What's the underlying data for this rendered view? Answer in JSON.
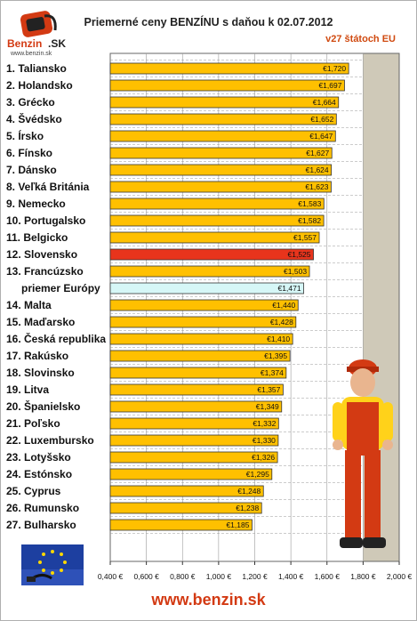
{
  "header": {
    "title": "Priemerné ceny BENZÍNU s daňou k 02.07.2012",
    "subtitle": "v27 štátoch EU"
  },
  "logo": {
    "brand": "Benzin",
    "brand_suffix": ".SK",
    "url": "www.benzin.sk"
  },
  "footer": {
    "url": "www.benzin.sk"
  },
  "colors": {
    "bar": "#ffc000",
    "highlight": "#e8341c",
    "average": "#d6f7f7",
    "average_label": "#6ab8e8",
    "highlight_label": "#e8341c",
    "plot_bg": "#cfc9b8"
  },
  "chart_data": {
    "type": "bar",
    "orientation": "horizontal",
    "title": "Priemerné ceny BENZÍNU s daňou k 02.07.2012",
    "subtitle": "v27 štátoch EU",
    "categories": [
      "1. Taliansko",
      "2. Holandsko",
      "3. Grécko",
      "4. Švédsko",
      "5. Írsko",
      "6. Fínsko",
      "7. Dánsko",
      "8. Veľká Británia",
      "9. Nemecko",
      "10. Portugalsko",
      "11. Belgicko",
      "12. Slovensko",
      "13. Francúzsko",
      "priemer Európy",
      "14. Malta",
      "15. Maďarsko",
      "16. Česká republika",
      "17. Rakúsko",
      "18. Slovinsko",
      "19. Litva",
      "20. Španielsko",
      "21. Poľsko",
      "22. Luxembursko",
      "23. Lotyšsko",
      "24. Estónsko",
      "25. Cyprus",
      "26. Rumunsko",
      "27. Bulharsko"
    ],
    "values": [
      1.72,
      1.697,
      1.664,
      1.652,
      1.647,
      1.627,
      1.624,
      1.623,
      1.583,
      1.582,
      1.557,
      1.525,
      1.503,
      1.471,
      1.44,
      1.428,
      1.41,
      1.395,
      1.374,
      1.357,
      1.349,
      1.332,
      1.33,
      1.326,
      1.295,
      1.248,
      1.238,
      1.185
    ],
    "value_labels": [
      "€1,720",
      "€1,697",
      "€1,664",
      "€1,652",
      "€1,647",
      "€1,627",
      "€1,624",
      "€1,623",
      "€1,583",
      "€1,582",
      "€1,557",
      "€1,525",
      "€1,503",
      "€1,471",
      "€1,440",
      "€1,428",
      "€1,410",
      "€1,395",
      "€1,374",
      "€1,357",
      "€1,349",
      "€1,332",
      "€1,330",
      "€1,326",
      "€1,295",
      "€1,248",
      "€1,238",
      "€1,185"
    ],
    "highlight_index": 11,
    "average_index": 13,
    "xlim": [
      0.4,
      2.0
    ],
    "xticks": [
      0.4,
      0.6,
      0.8,
      1.0,
      1.2,
      1.4,
      1.6,
      1.8,
      2.0
    ],
    "xtick_labels": [
      "0,400 €",
      "0,600 €",
      "0,800 €",
      "1,000 €",
      "1,200 €",
      "1,400 €",
      "1,600 €",
      "1,800 €",
      "2,000 €"
    ],
    "grid": true
  }
}
